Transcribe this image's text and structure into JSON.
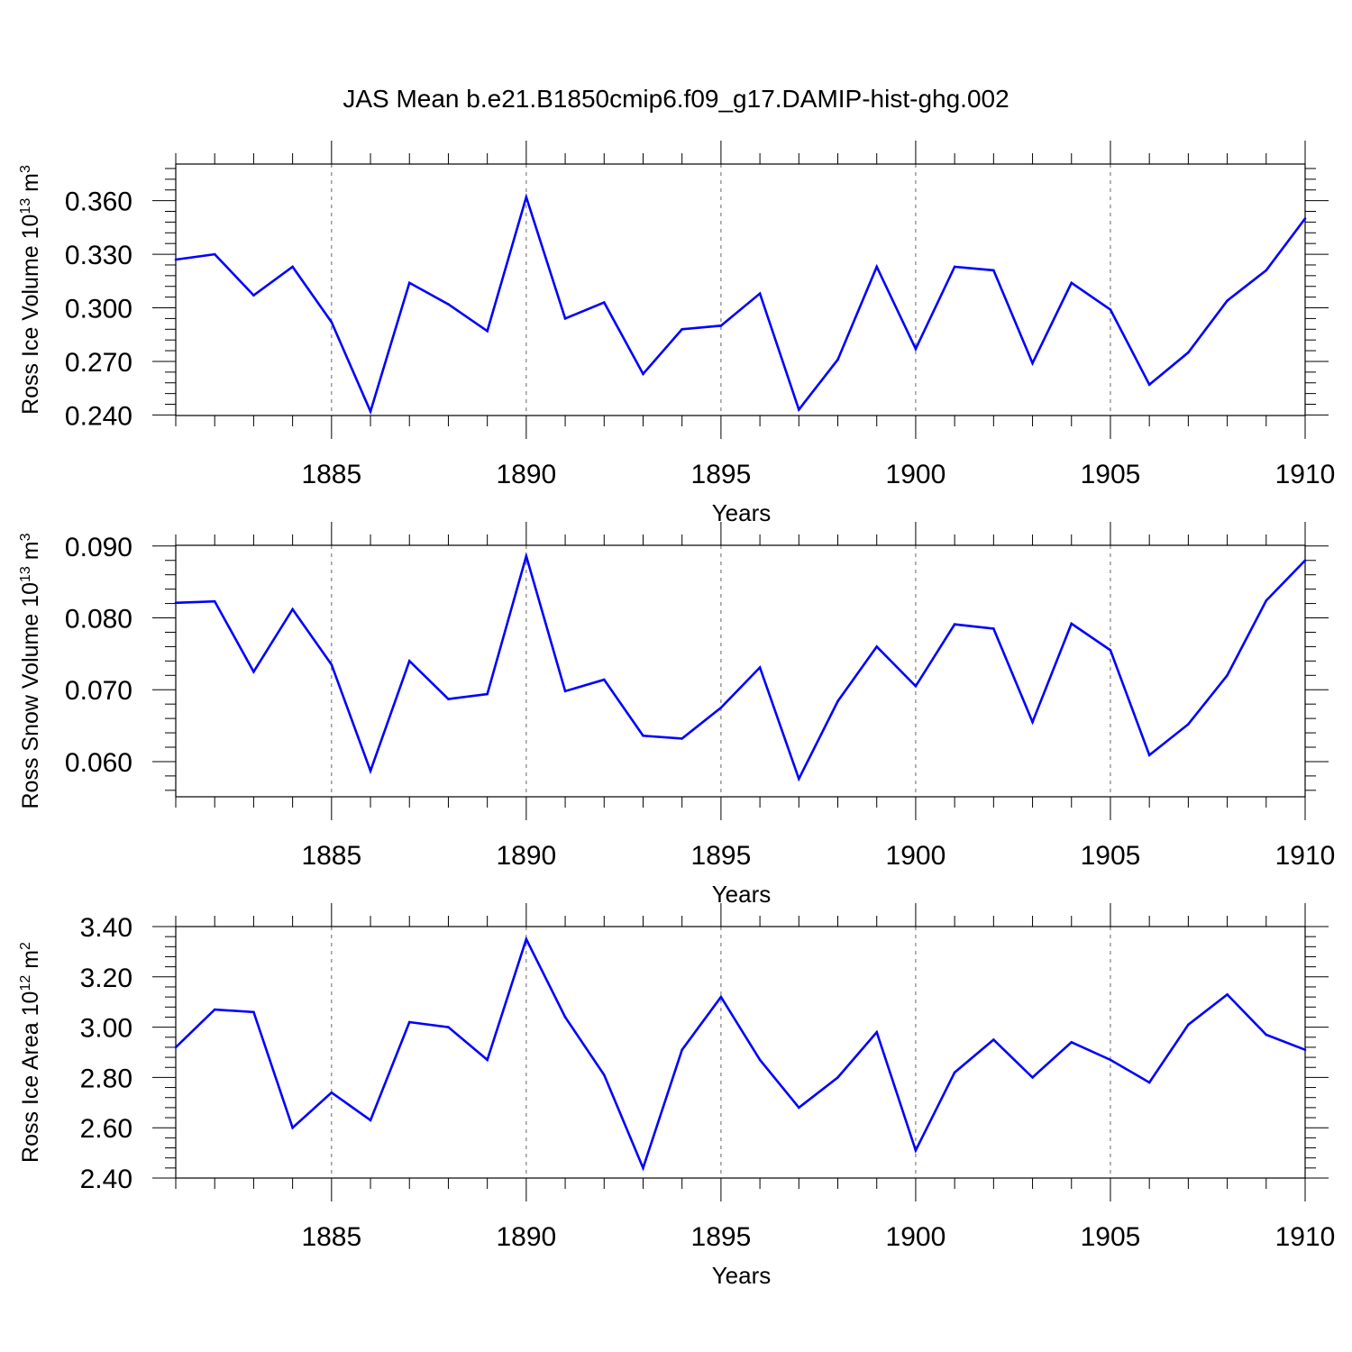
{
  "figure": {
    "title": "JAS Mean b.e21.B1850cmip6.f09_g17.DAMIP-hist-ghg.002"
  },
  "colors": {
    "line": "#0000ff",
    "axis": "#000000",
    "grid": "#666666"
  },
  "chart_data": [
    {
      "type": "line",
      "xlabel": "Years",
      "ylabel": {
        "text": "Ross Ice Volume 10",
        "sup": "13",
        "unit": " m",
        "unitsup": "3"
      },
      "xlim": [
        1881,
        1910
      ],
      "ylim": [
        0.2397,
        0.3805
      ],
      "xticks": [
        1885,
        1890,
        1895,
        1900,
        1905,
        1910
      ],
      "yticks": [
        0.24,
        0.27,
        0.3,
        0.33,
        0.36
      ],
      "ytick_labels": [
        "0.240",
        "0.270",
        "0.300",
        "0.330",
        "0.360"
      ],
      "grid_x": true,
      "x": [
        1881,
        1882,
        1883,
        1884,
        1885,
        1886,
        1887,
        1888,
        1889,
        1890,
        1891,
        1892,
        1893,
        1894,
        1895,
        1896,
        1897,
        1898,
        1899,
        1900,
        1901,
        1902,
        1903,
        1904,
        1905,
        1906,
        1907,
        1908,
        1909,
        1910
      ],
      "values": [
        0.327,
        0.33,
        0.307,
        0.323,
        0.292,
        0.242,
        0.314,
        0.302,
        0.287,
        0.362,
        0.294,
        0.303,
        0.263,
        0.288,
        0.29,
        0.308,
        0.243,
        0.271,
        0.323,
        0.277,
        0.323,
        0.321,
        0.269,
        0.314,
        0.299,
        0.257,
        0.275,
        0.304,
        0.321,
        0.35
      ]
    },
    {
      "type": "line",
      "xlabel": "Years",
      "ylabel": {
        "text": "Ross Snow Volume 10",
        "sup": "13",
        "unit": " m",
        "unitsup": "3"
      },
      "xlim": [
        1881,
        1910
      ],
      "ylim": [
        0.0551,
        0.0901
      ],
      "xticks": [
        1885,
        1890,
        1895,
        1900,
        1905,
        1910
      ],
      "yticks": [
        0.06,
        0.07,
        0.08,
        0.09
      ],
      "ytick_labels": [
        "0.060",
        "0.070",
        "0.080",
        "0.090"
      ],
      "grid_x": true,
      "x": [
        1881,
        1882,
        1883,
        1884,
        1885,
        1886,
        1887,
        1888,
        1889,
        1890,
        1891,
        1892,
        1893,
        1894,
        1895,
        1896,
        1897,
        1898,
        1899,
        1900,
        1901,
        1902,
        1903,
        1904,
        1905,
        1906,
        1907,
        1908,
        1909,
        1910
      ],
      "values": [
        0.0821,
        0.0823,
        0.0725,
        0.0812,
        0.0735,
        0.0587,
        0.074,
        0.0687,
        0.0694,
        0.0886,
        0.0698,
        0.0714,
        0.0636,
        0.0632,
        0.0675,
        0.0731,
        0.0576,
        0.0684,
        0.076,
        0.0705,
        0.0791,
        0.0785,
        0.0655,
        0.0792,
        0.0755,
        0.0609,
        0.0652,
        0.072,
        0.0824,
        0.088
      ]
    },
    {
      "type": "line",
      "xlabel": "Years",
      "ylabel": {
        "text": "Ross Ice Area 10",
        "sup": "12",
        "unit": " m",
        "unitsup": "2"
      },
      "xlim": [
        1881,
        1910
      ],
      "ylim": [
        2.4,
        3.4
      ],
      "xticks": [
        1885,
        1890,
        1895,
        1900,
        1905,
        1910
      ],
      "yticks": [
        2.4,
        2.6,
        2.8,
        3.0,
        3.2,
        3.4
      ],
      "ytick_labels": [
        "2.40",
        "2.60",
        "2.80",
        "3.00",
        "3.20",
        "3.40"
      ],
      "grid_x": true,
      "x": [
        1881,
        1882,
        1883,
        1884,
        1885,
        1886,
        1887,
        1888,
        1889,
        1890,
        1891,
        1892,
        1893,
        1894,
        1895,
        1896,
        1897,
        1898,
        1899,
        1900,
        1901,
        1902,
        1903,
        1904,
        1905,
        1906,
        1907,
        1908,
        1909,
        1910
      ],
      "values": [
        2.92,
        3.07,
        3.06,
        2.6,
        2.74,
        2.63,
        3.02,
        3.0,
        2.87,
        3.35,
        3.04,
        2.81,
        2.44,
        2.91,
        3.12,
        2.87,
        2.68,
        2.8,
        2.98,
        2.51,
        2.82,
        2.95,
        2.8,
        2.94,
        2.87,
        2.78,
        3.01,
        3.13,
        2.97,
        2.91
      ]
    }
  ]
}
